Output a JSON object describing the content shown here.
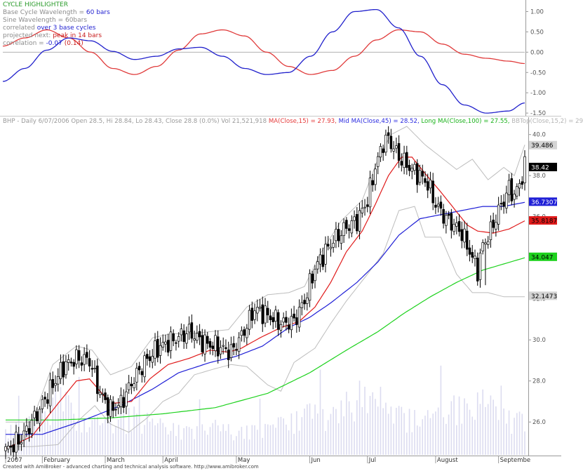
{
  "oscillator_legend": {
    "title": "CYCLE HIGHLIGHTER",
    "base_label": "Base Cycle Wavelength = ",
    "base_value": "60 bars",
    "sine_label": "Sine Wavelength = 60bars",
    "correlated_label": "correlated ",
    "correlated_value": "over 3 base cycles",
    "projected_label": "projected next: ",
    "projected_value": "peak in 14 bars",
    "correlation_label": "correlation = ",
    "correlation_value": "-0.07",
    "correlation_prev": " (0.14)"
  },
  "price_legend": {
    "title": "BHP - Daily 6/07/2006 Open 28.5, Hi 28.84, Lo 28.43, Close 28.8 (0.0%) Vol 21,521,918 ",
    "ma15": "MA(Close,15) = 27.93,",
    "ma45": " Mid MA(Close,45) = 28.52,",
    "ma100": " Long MA(Close,100) = 27.55,",
    "bb": " BBTop(Close,15,2) = 29"
  },
  "footer": "Created with AmiBroker - advanced charting and technical analysis software. http://www.amibroker.com",
  "colors": {
    "ma15": "#e01b1b",
    "ma45": "#1f1fd6",
    "ma100": "#1ed21e",
    "bands": "#bdbdbd",
    "volume": "#dcdcf0",
    "sine": "#e03a3a",
    "cycle": "#2121cc",
    "axis": "#9a9a9a"
  },
  "chart_data": [
    {
      "type": "line",
      "title": "CYCLE HIGHLIGHTER",
      "ylim": [
        -1.55,
        1.25
      ],
      "y_ticks": [
        "1.00",
        "0.50",
        "0.00",
        "-0.50",
        "-1.00",
        "-1.50"
      ],
      "y_tick_values": [
        1.0,
        0.5,
        0.0,
        -0.5,
        -1.0,
        -1.5
      ],
      "x": [
        0,
        8,
        16,
        24,
        32,
        40,
        48,
        56,
        64,
        72,
        80,
        88,
        96,
        104,
        112,
        120,
        128,
        136,
        144,
        152,
        160,
        168,
        176,
        184,
        190
      ],
      "series": [
        {
          "name": "Base Cycle",
          "values": [
            -0.72,
            -0.4,
            0.05,
            0.35,
            0.28,
            0.02,
            -0.18,
            -0.1,
            0.08,
            0.12,
            -0.1,
            -0.4,
            -0.55,
            -0.5,
            -0.1,
            0.5,
            1.0,
            1.05,
            0.6,
            -0.1,
            -0.8,
            -1.3,
            -1.5,
            -1.45,
            -1.25
          ]
        },
        {
          "name": "Sine",
          "values": [
            0.15,
            0.35,
            0.55,
            0.35,
            0.0,
            -0.4,
            -0.55,
            -0.35,
            0.05,
            0.45,
            0.55,
            0.4,
            0.0,
            -0.35,
            -0.55,
            -0.45,
            -0.1,
            0.3,
            0.55,
            0.5,
            0.2,
            -0.05,
            -0.15,
            -0.22,
            -0.28
          ]
        }
      ]
    },
    {
      "type": "candlestick",
      "title": "BHP - Daily",
      "ylim": [
        24.4,
        40.4
      ],
      "y_ticks": [
        "40.0",
        "38.0",
        "36.0",
        "34.0",
        "32.0",
        "30.0",
        "28.0",
        "26.0"
      ],
      "y_tick_values": [
        40,
        38,
        36,
        34,
        32,
        30,
        28,
        26
      ],
      "x_labels": [
        "2007",
        "February",
        "March",
        "April",
        "May",
        "Jun",
        "Jul",
        "August",
        "Septembe"
      ],
      "x_label_bars": [
        0,
        14,
        38,
        60,
        88,
        116,
        138,
        164,
        188
      ],
      "value_labels": [
        {
          "text": "39.486",
          "value": 39.486,
          "role": "bands"
        },
        {
          "text": "38.42",
          "value": 38.42,
          "role": "close"
        },
        {
          "text": "36.7307",
          "value": 36.7307,
          "role": "ma45"
        },
        {
          "text": "35.8187",
          "value": 35.8187,
          "role": "ma15"
        },
        {
          "text": "34.047",
          "value": 34.047,
          "role": "ma100"
        },
        {
          "text": "32.1473",
          "value": 32.1473,
          "role": "bands"
        }
      ],
      "anchors": {
        "close": [
          [
            0,
            24.6
          ],
          [
            6,
            25.2
          ],
          [
            12,
            26.4
          ],
          [
            18,
            27.8
          ],
          [
            22,
            28.7
          ],
          [
            27,
            29.1
          ],
          [
            32,
            29.0
          ],
          [
            36,
            27.4
          ],
          [
            40,
            26.6
          ],
          [
            44,
            26.9
          ],
          [
            48,
            27.9
          ],
          [
            53,
            28.9
          ],
          [
            58,
            29.6
          ],
          [
            64,
            30.0
          ],
          [
            70,
            30.4
          ],
          [
            75,
            29.9
          ],
          [
            80,
            29.7
          ],
          [
            86,
            29.4
          ],
          [
            90,
            30.2
          ],
          [
            95,
            31.5
          ],
          [
            100,
            31.2
          ],
          [
            105,
            30.8
          ],
          [
            110,
            30.9
          ],
          [
            114,
            31.9
          ],
          [
            118,
            33.5
          ],
          [
            124,
            34.7
          ],
          [
            130,
            35.5
          ],
          [
            134,
            35.8
          ],
          [
            138,
            36.8
          ],
          [
            141,
            38.4
          ],
          [
            144,
            39.6
          ],
          [
            146,
            39.8
          ],
          [
            150,
            38.9
          ],
          [
            155,
            38.3
          ],
          [
            158,
            38.0
          ],
          [
            161,
            37.6
          ],
          [
            164,
            36.6
          ],
          [
            168,
            35.9
          ],
          [
            171,
            35.6
          ],
          [
            174,
            35.2
          ],
          [
            177,
            34.3
          ],
          [
            180,
            33.4
          ],
          [
            182,
            34.6
          ],
          [
            185,
            35.3
          ],
          [
            188,
            36.3
          ],
          [
            190,
            36.8
          ],
          [
            192,
            37.4
          ],
          [
            194,
            37.0
          ],
          [
            196,
            37.6
          ],
          [
            198,
            38.4
          ]
        ],
        "ma15": [
          [
            0,
            24.7
          ],
          [
            10,
            25.3
          ],
          [
            20,
            26.9
          ],
          [
            27,
            28.0
          ],
          [
            32,
            28.1
          ],
          [
            40,
            26.9
          ],
          [
            48,
            27.0
          ],
          [
            55,
            28.1
          ],
          [
            62,
            28.8
          ],
          [
            70,
            29.1
          ],
          [
            78,
            29.5
          ],
          [
            85,
            29.4
          ],
          [
            90,
            29.6
          ],
          [
            97,
            30.1
          ],
          [
            105,
            30.6
          ],
          [
            112,
            30.9
          ],
          [
            118,
            31.6
          ],
          [
            124,
            32.8
          ],
          [
            130,
            34.3
          ],
          [
            136,
            35.3
          ],
          [
            141,
            36.6
          ],
          [
            146,
            38.0
          ],
          [
            151,
            38.9
          ],
          [
            155,
            38.9
          ],
          [
            160,
            38.1
          ],
          [
            166,
            37.2
          ],
          [
            171,
            36.4
          ],
          [
            176,
            35.6
          ],
          [
            180,
            35.3
          ],
          [
            186,
            35.2
          ],
          [
            192,
            35.4
          ],
          [
            198,
            35.8
          ]
        ],
        "ma45": [
          [
            0,
            25.4
          ],
          [
            14,
            25.4
          ],
          [
            28,
            26.0
          ],
          [
            44,
            26.8
          ],
          [
            56,
            27.6
          ],
          [
            66,
            28.4
          ],
          [
            78,
            28.9
          ],
          [
            88,
            29.2
          ],
          [
            98,
            29.7
          ],
          [
            108,
            30.6
          ],
          [
            116,
            31.1
          ],
          [
            124,
            31.8
          ],
          [
            134,
            32.8
          ],
          [
            142,
            33.8
          ],
          [
            150,
            35.1
          ],
          [
            158,
            35.9
          ],
          [
            166,
            36.1
          ],
          [
            174,
            36.3
          ],
          [
            182,
            36.5
          ],
          [
            190,
            36.5
          ],
          [
            198,
            36.7
          ]
        ],
        "ma100": [
          [
            0,
            26.1
          ],
          [
            20,
            26.1
          ],
          [
            40,
            26.2
          ],
          [
            60,
            26.4
          ],
          [
            80,
            26.7
          ],
          [
            100,
            27.4
          ],
          [
            116,
            28.4
          ],
          [
            130,
            29.5
          ],
          [
            142,
            30.4
          ],
          [
            152,
            31.3
          ],
          [
            162,
            32.1
          ],
          [
            172,
            32.8
          ],
          [
            182,
            33.4
          ],
          [
            190,
            33.7
          ],
          [
            198,
            34.0
          ]
        ],
        "bb_upper": [
          [
            0,
            26.0
          ],
          [
            10,
            26.0
          ],
          [
            18,
            28.8
          ],
          [
            27,
            29.7
          ],
          [
            33,
            29.5
          ],
          [
            40,
            28.3
          ],
          [
            48,
            28.7
          ],
          [
            56,
            30.1
          ],
          [
            63,
            30.3
          ],
          [
            70,
            30.3
          ],
          [
            78,
            30.4
          ],
          [
            85,
            30.5
          ],
          [
            92,
            31.6
          ],
          [
            100,
            32.2
          ],
          [
            108,
            32.3
          ],
          [
            114,
            32.6
          ],
          [
            120,
            34.2
          ],
          [
            128,
            35.8
          ],
          [
            136,
            36.8
          ],
          [
            142,
            38.8
          ],
          [
            147,
            40.0
          ],
          [
            153,
            40.4
          ],
          [
            160,
            39.5
          ],
          [
            166,
            38.9
          ],
          [
            172,
            38.3
          ],
          [
            178,
            38.8
          ],
          [
            184,
            37.8
          ],
          [
            190,
            38.4
          ],
          [
            194,
            38.0
          ],
          [
            198,
            39.5
          ]
        ],
        "bb_lower": [
          [
            0,
            24.8
          ],
          [
            10,
            24.8
          ],
          [
            20,
            24.9
          ],
          [
            28,
            26.1
          ],
          [
            34,
            26.8
          ],
          [
            40,
            25.9
          ],
          [
            47,
            25.5
          ],
          [
            54,
            26.2
          ],
          [
            60,
            27.0
          ],
          [
            66,
            27.4
          ],
          [
            72,
            28.3
          ],
          [
            80,
            28.6
          ],
          [
            86,
            28.8
          ],
          [
            92,
            28.7
          ],
          [
            100,
            27.8
          ],
          [
            105,
            27.5
          ],
          [
            110,
            28.9
          ],
          [
            118,
            29.6
          ],
          [
            124,
            30.8
          ],
          [
            130,
            31.9
          ],
          [
            138,
            33.2
          ],
          [
            144,
            34.2
          ],
          [
            150,
            36.3
          ],
          [
            156,
            36.5
          ],
          [
            160,
            35.0
          ],
          [
            166,
            35.0
          ],
          [
            172,
            33.2
          ],
          [
            178,
            32.3
          ],
          [
            184,
            32.3
          ],
          [
            190,
            32.1
          ],
          [
            198,
            32.1
          ]
        ],
        "volume": [
          [
            0,
            0.2
          ],
          [
            12,
            0.3
          ],
          [
            20,
            0.55
          ],
          [
            30,
            0.25
          ],
          [
            40,
            0.3
          ],
          [
            50,
            0.35
          ],
          [
            60,
            0.25
          ],
          [
            70,
            0.2
          ],
          [
            80,
            0.25
          ],
          [
            90,
            0.2
          ],
          [
            100,
            0.25
          ],
          [
            110,
            0.3
          ],
          [
            118,
            0.4
          ],
          [
            126,
            0.35
          ],
          [
            134,
            0.55
          ],
          [
            140,
            0.45
          ],
          [
            150,
            0.35
          ],
          [
            160,
            0.3
          ],
          [
            168,
            0.45
          ],
          [
            176,
            0.4
          ],
          [
            182,
            0.5
          ],
          [
            188,
            0.35
          ],
          [
            198,
            0.3
          ]
        ]
      }
    }
  ]
}
